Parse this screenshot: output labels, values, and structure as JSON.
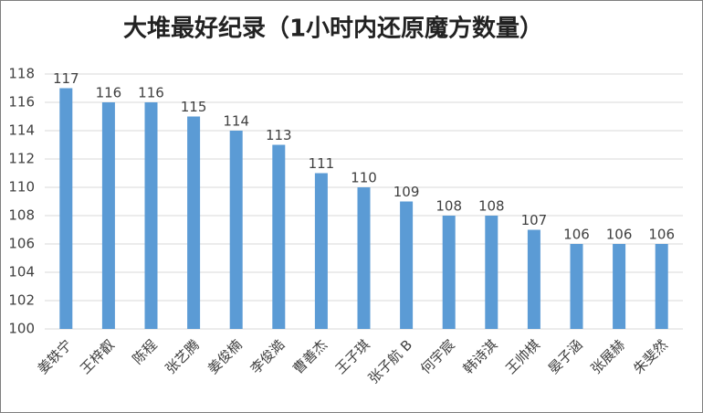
{
  "chart_data": {
    "type": "bar",
    "title": "大堆最好纪录（1小时内还原魔方数量）",
    "categories": [
      "姜轶宁",
      "王梓叡",
      "陈程",
      "张艺腾",
      "姜俊楠",
      "李俊澔",
      "曹善杰",
      "王子琪",
      "张子航 B",
      "何宇宸",
      "韩诗淇",
      "王帅棋",
      "晏子涵",
      "张展赫",
      "朱斐然"
    ],
    "values": [
      117,
      116,
      116,
      115,
      114,
      113,
      111,
      110,
      109,
      108,
      108,
      107,
      106,
      106,
      106
    ],
    "color": "#5b9bd5",
    "ylim": [
      100,
      118
    ],
    "yticks": [
      100,
      102,
      104,
      106,
      108,
      110,
      112,
      114,
      116,
      118
    ],
    "grid": true
  }
}
